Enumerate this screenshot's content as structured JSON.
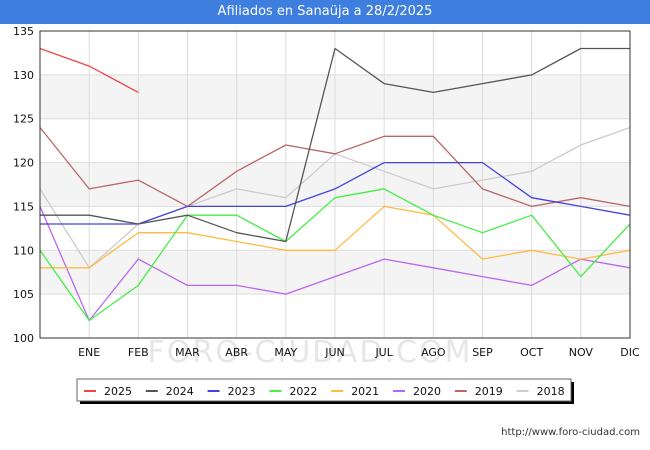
{
  "header": {
    "title": "Afiliados en Sanaüja a 28/2/2025"
  },
  "watermark": "FORO-CIUDAD.COM",
  "footer": {
    "url": "http://www.foro-ciudad.com"
  },
  "colors": {
    "title_bar": "#3d7ede",
    "band": "#f4f4f4",
    "grid": "#dddddd"
  },
  "chart_data": {
    "type": "line",
    "title": "Afiliados en Sanaüja a 28/2/2025",
    "xlabel": "",
    "ylabel": "",
    "ylim": [
      100,
      135
    ],
    "yticks": [
      100,
      105,
      110,
      115,
      120,
      125,
      130,
      135
    ],
    "categories": [
      "",
      "ENE",
      "FEB",
      "MAR",
      "ABR",
      "MAY",
      "JUN",
      "JUL",
      "AGO",
      "SEP",
      "OCT",
      "NOV",
      "DIC"
    ],
    "grid": true,
    "legend_position": "bottom",
    "series": [
      {
        "name": "2025",
        "color": "#ee4444",
        "values": [
          133,
          131,
          128,
          null,
          null,
          null,
          null,
          null,
          null,
          null,
          null,
          null,
          null
        ]
      },
      {
        "name": "2024",
        "color": "#555555",
        "values": [
          114,
          114,
          113,
          114,
          112,
          111,
          133,
          129,
          128,
          129,
          130,
          133,
          133
        ]
      },
      {
        "name": "2023",
        "color": "#4444dd",
        "values": [
          113,
          113,
          113,
          115,
          115,
          115,
          117,
          120,
          120,
          120,
          116,
          115,
          114
        ]
      },
      {
        "name": "2022",
        "color": "#44ee44",
        "values": [
          110,
          102,
          106,
          114,
          114,
          111,
          116,
          117,
          114,
          112,
          114,
          107,
          113
        ]
      },
      {
        "name": "2021",
        "color": "#ffbb44",
        "values": [
          108,
          108,
          112,
          112,
          111,
          110,
          110,
          115,
          114,
          109,
          110,
          109,
          110
        ]
      },
      {
        "name": "2020",
        "color": "#bb66ee",
        "values": [
          115,
          102,
          109,
          106,
          106,
          105,
          107,
          109,
          108,
          107,
          106,
          109,
          108
        ]
      },
      {
        "name": "2019",
        "color": "#bb6666",
        "values": [
          124,
          117,
          118,
          115,
          119,
          122,
          121,
          123,
          123,
          117,
          115,
          116,
          115
        ]
      },
      {
        "name": "2018",
        "color": "#cccccc",
        "values": [
          117,
          108,
          113,
          115,
          117,
          116,
          121,
          119,
          117,
          118,
          119,
          122,
          124
        ]
      }
    ]
  }
}
